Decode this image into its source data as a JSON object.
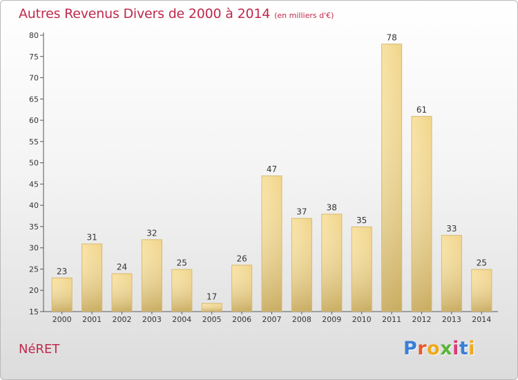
{
  "header": {
    "title": "Autres Revenus Divers de 2000 à 2014",
    "subtitle": "(en milliers d'€)"
  },
  "footer": {
    "commune": "NéRET",
    "logo_text": "Proxiti",
    "logo_colors": [
      "#3a7fd5",
      "#e8582a",
      "#f0a91b",
      "#5bb43a",
      "#d93a7a",
      "#3a7fd5",
      "#f0a91b"
    ]
  },
  "colors": {
    "title": "#c0284b",
    "bar_light": "#f6dc96",
    "bar_dark": "#c8a85e",
    "axis": "#555555"
  },
  "chart_data": {
    "type": "bar",
    "categories": [
      "2000",
      "2001",
      "2002",
      "2003",
      "2004",
      "2005",
      "2006",
      "2007",
      "2008",
      "2009",
      "2010",
      "2011",
      "2012",
      "2013",
      "2014"
    ],
    "values": [
      23,
      31,
      24,
      32,
      25,
      17,
      26,
      47,
      37,
      38,
      35,
      78,
      61,
      33,
      25
    ],
    "title": "Autres Revenus Divers de 2000 à 2014",
    "subtitle": "(en milliers d'€)",
    "xlabel": "",
    "ylabel": "",
    "ylim": [
      15,
      80
    ],
    "yticks": [
      15,
      20,
      25,
      30,
      35,
      40,
      45,
      50,
      55,
      60,
      65,
      70,
      75,
      80
    ],
    "grid": false,
    "data_labels": true
  }
}
